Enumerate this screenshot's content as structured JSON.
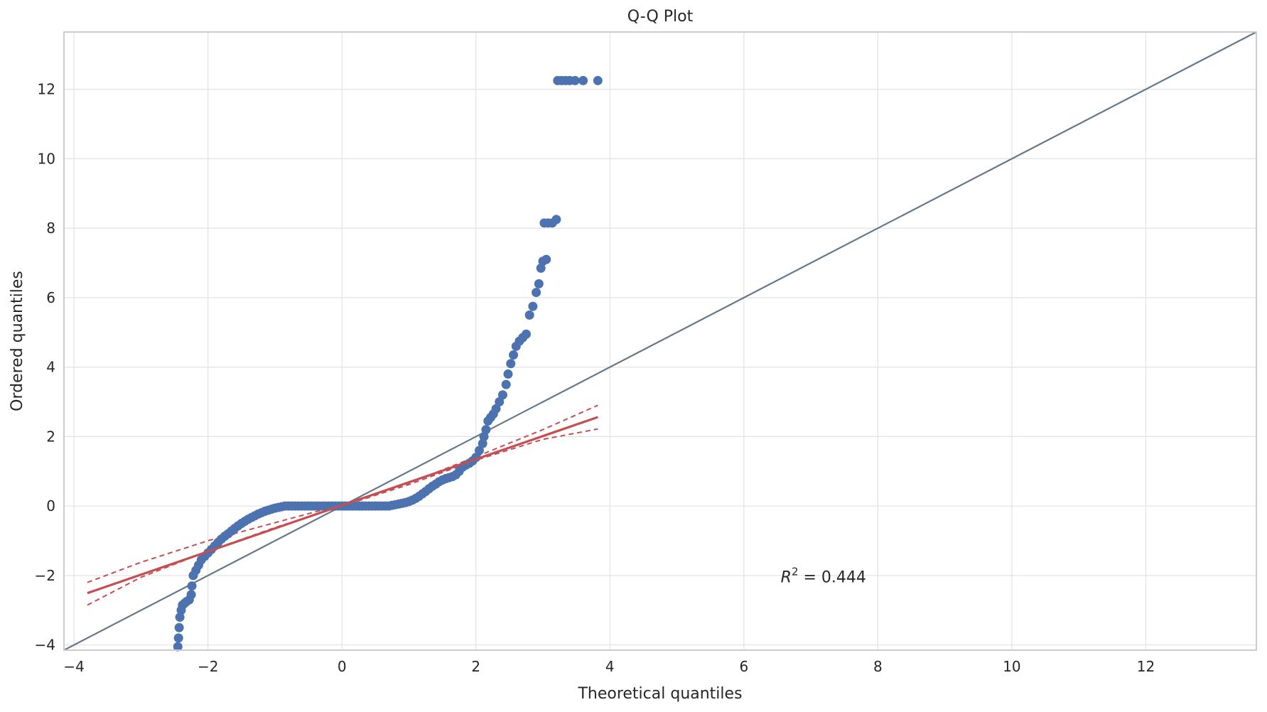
{
  "chart_data": {
    "type": "scatter",
    "title": "Q-Q Plot",
    "xlabel": "Theoretical quantiles",
    "ylabel": "Ordered quantiles",
    "xlim": [
      -4.15,
      13.65
    ],
    "ylim": [
      -4.15,
      13.65
    ],
    "xticks": [
      -4,
      -2,
      0,
      2,
      4,
      6,
      8,
      10,
      12
    ],
    "yticks": [
      -4,
      -2,
      0,
      2,
      4,
      6,
      8,
      10,
      12
    ],
    "grid": true,
    "annotation": {
      "prefix": "R",
      "exponent": "2",
      "suffix": " = 0.444",
      "x": 6.55,
      "y": -2.2
    },
    "colors": {
      "points": "#4c72b0",
      "fit": "#c44e52",
      "reference": "#667788",
      "grid": "#e2e2e2",
      "frame": "#cccccc",
      "text": "#262626"
    },
    "series": [
      {
        "role": "ordered-values",
        "points": [
          [
            -2.45,
            -4.05
          ],
          [
            -2.44,
            -3.8
          ],
          [
            -2.43,
            -3.5
          ],
          [
            -2.42,
            -3.2
          ],
          [
            -2.4,
            -3.0
          ],
          [
            -2.38,
            -2.85
          ],
          [
            -2.35,
            -2.8
          ],
          [
            -2.32,
            -2.75
          ],
          [
            -2.28,
            -2.7
          ],
          [
            -2.25,
            -2.55
          ],
          [
            -2.24,
            -2.3
          ],
          [
            -2.22,
            -2.0
          ],
          [
            -2.18,
            -1.85
          ],
          [
            -2.14,
            -1.7
          ],
          [
            -2.1,
            -1.55
          ],
          [
            -2.05,
            -1.45
          ],
          [
            -2.0,
            -1.35
          ],
          [
            -1.95,
            -1.25
          ],
          [
            -1.9,
            -1.15
          ],
          [
            -1.85,
            -1.05
          ],
          [
            -1.8,
            -0.95
          ],
          [
            -1.75,
            -0.87
          ],
          [
            -1.7,
            -0.8
          ],
          [
            -1.65,
            -0.72
          ],
          [
            -1.6,
            -0.64
          ],
          [
            -1.55,
            -0.57
          ],
          [
            -1.5,
            -0.5
          ],
          [
            -1.45,
            -0.44
          ],
          [
            -1.4,
            -0.38
          ],
          [
            -1.35,
            -0.33
          ],
          [
            -1.3,
            -0.28
          ],
          [
            -1.25,
            -0.23
          ],
          [
            -1.2,
            -0.19
          ],
          [
            -1.15,
            -0.15
          ],
          [
            -1.1,
            -0.12
          ],
          [
            -1.05,
            -0.09
          ],
          [
            -1.0,
            -0.06
          ],
          [
            -0.95,
            -0.04
          ],
          [
            -0.9,
            -0.02
          ],
          [
            -0.85,
            0.0
          ],
          [
            -0.8,
            0.0
          ],
          [
            -0.75,
            0.0
          ],
          [
            -0.7,
            0.0
          ],
          [
            -0.65,
            0.0
          ],
          [
            -0.6,
            0.0
          ],
          [
            -0.55,
            0.0
          ],
          [
            -0.5,
            0.0
          ],
          [
            -0.45,
            0.0
          ],
          [
            -0.4,
            0.0
          ],
          [
            -0.35,
            0.0
          ],
          [
            -0.3,
            0.0
          ],
          [
            -0.25,
            0.0
          ],
          [
            -0.2,
            0.0
          ],
          [
            -0.15,
            0.0
          ],
          [
            -0.1,
            0.0
          ],
          [
            -0.05,
            0.0
          ],
          [
            0.0,
            0.0
          ],
          [
            0.05,
            0.0
          ],
          [
            0.1,
            0.0
          ],
          [
            0.15,
            0.0
          ],
          [
            0.2,
            0.0
          ],
          [
            0.25,
            0.0
          ],
          [
            0.3,
            0.0
          ],
          [
            0.35,
            0.0
          ],
          [
            0.4,
            0.0
          ],
          [
            0.45,
            0.0
          ],
          [
            0.5,
            0.0
          ],
          [
            0.55,
            0.0
          ],
          [
            0.6,
            0.0
          ],
          [
            0.65,
            0.0
          ],
          [
            0.7,
            0.0
          ],
          [
            0.75,
            0.02
          ],
          [
            0.8,
            0.04
          ],
          [
            0.85,
            0.06
          ],
          [
            0.9,
            0.08
          ],
          [
            0.95,
            0.1
          ],
          [
            1.0,
            0.13
          ],
          [
            1.05,
            0.17
          ],
          [
            1.1,
            0.22
          ],
          [
            1.15,
            0.28
          ],
          [
            1.2,
            0.35
          ],
          [
            1.25,
            0.42
          ],
          [
            1.3,
            0.5
          ],
          [
            1.35,
            0.57
          ],
          [
            1.4,
            0.63
          ],
          [
            1.45,
            0.7
          ],
          [
            1.5,
            0.75
          ],
          [
            1.55,
            0.79
          ],
          [
            1.6,
            0.82
          ],
          [
            1.65,
            0.85
          ],
          [
            1.7,
            0.9
          ],
          [
            1.75,
            1.0
          ],
          [
            1.8,
            1.12
          ],
          [
            1.85,
            1.18
          ],
          [
            1.9,
            1.23
          ],
          [
            1.95,
            1.3
          ],
          [
            2.0,
            1.4
          ],
          [
            2.05,
            1.6
          ],
          [
            2.1,
            1.8
          ],
          [
            2.12,
            2.0
          ],
          [
            2.15,
            2.2
          ],
          [
            2.18,
            2.45
          ],
          [
            2.22,
            2.55
          ],
          [
            2.26,
            2.65
          ],
          [
            2.3,
            2.8
          ],
          [
            2.35,
            3.0
          ],
          [
            2.4,
            3.2
          ],
          [
            2.45,
            3.5
          ],
          [
            2.48,
            3.8
          ],
          [
            2.52,
            4.1
          ],
          [
            2.56,
            4.35
          ],
          [
            2.6,
            4.6
          ],
          [
            2.65,
            4.75
          ],
          [
            2.7,
            4.85
          ],
          [
            2.75,
            4.95
          ],
          [
            2.8,
            5.5
          ],
          [
            2.85,
            5.75
          ],
          [
            2.9,
            6.15
          ],
          [
            2.94,
            6.4
          ],
          [
            2.97,
            6.85
          ],
          [
            3.0,
            7.05
          ],
          [
            3.05,
            7.1
          ],
          [
            3.02,
            8.15
          ],
          [
            3.08,
            8.15
          ],
          [
            3.14,
            8.15
          ],
          [
            3.2,
            8.25
          ],
          [
            3.22,
            12.25
          ],
          [
            3.28,
            12.25
          ],
          [
            3.34,
            12.25
          ],
          [
            3.4,
            12.25
          ],
          [
            3.48,
            12.25
          ],
          [
            3.6,
            12.25
          ],
          [
            3.82,
            12.25
          ]
        ]
      }
    ],
    "fit_line": {
      "label": "regression",
      "slope": 0.665,
      "intercept": 0.02,
      "x_range": [
        -3.8,
        3.82
      ]
    },
    "fit_band": {
      "upper": [
        [
          -3.8,
          -2.2
        ],
        [
          -3.0,
          -1.62
        ],
        [
          -2.0,
          -1.0
        ],
        [
          -1.0,
          -0.48
        ],
        [
          0.0,
          0.04
        ],
        [
          1.0,
          0.66
        ],
        [
          2.0,
          1.42
        ],
        [
          3.0,
          2.2
        ],
        [
          3.82,
          2.9
        ]
      ],
      "lower": [
        [
          -3.8,
          -2.85
        ],
        [
          -3.0,
          -2.05
        ],
        [
          -2.0,
          -1.3
        ],
        [
          -1.0,
          -0.62
        ],
        [
          0.0,
          0.0
        ],
        [
          1.0,
          0.62
        ],
        [
          2.0,
          1.32
        ],
        [
          3.0,
          1.92
        ],
        [
          3.82,
          2.22
        ]
      ]
    },
    "reference_line": {
      "label": "y = x",
      "from": [
        -4.15,
        -4.15
      ],
      "to": [
        13.65,
        13.65
      ]
    }
  }
}
